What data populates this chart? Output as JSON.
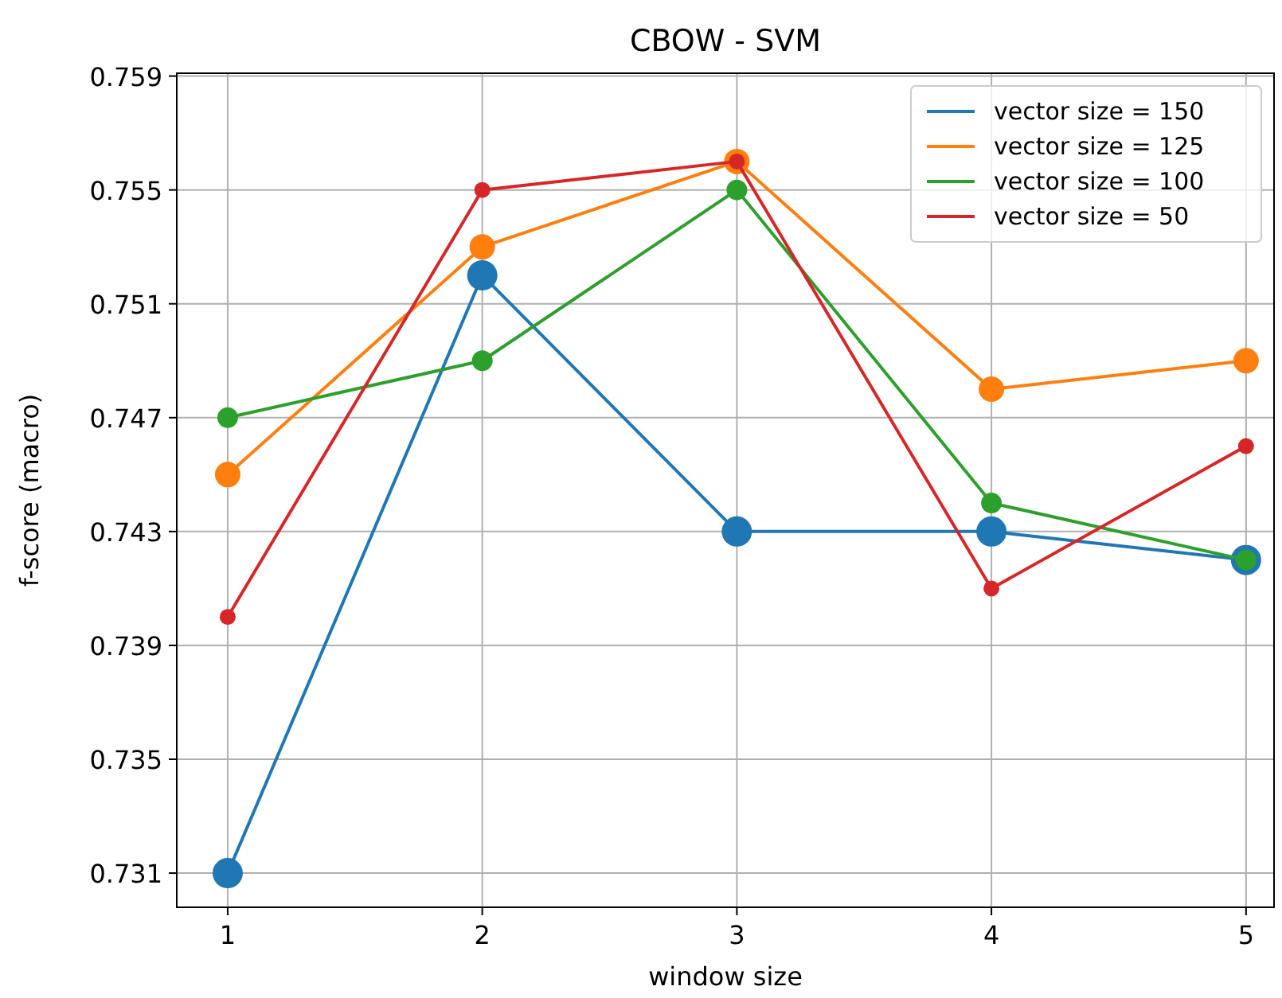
{
  "chart_data": {
    "type": "line",
    "title": "CBOW - SVM",
    "xlabel": "window size",
    "ylabel": "f-score (macro)",
    "x": [
      1,
      2,
      3,
      4,
      5
    ],
    "series": [
      {
        "name": "vector size = 150",
        "color": "#1f77b4",
        "values": [
          0.731,
          0.752,
          0.743,
          0.743,
          0.742
        ]
      },
      {
        "name": "vector size = 125",
        "color": "#ff7f0e",
        "values": [
          0.745,
          0.753,
          0.756,
          0.748,
          0.749
        ]
      },
      {
        "name": "vector size = 100",
        "color": "#2ca02c",
        "values": [
          0.747,
          0.749,
          0.755,
          0.744,
          0.742
        ]
      },
      {
        "name": "vector size = 50",
        "color": "#d62728",
        "values": [
          0.74,
          0.755,
          0.756,
          0.741,
          0.746
        ]
      }
    ],
    "xlim": [
      0.8,
      5.11
    ],
    "xticks": [
      1,
      2,
      3,
      4,
      5
    ],
    "ylim": [
      0.7298,
      0.7591
    ],
    "yticks": [
      {
        "value": 0.731,
        "label": "0.731"
      },
      {
        "value": 0.735,
        "label": "0.735"
      },
      {
        "value": 0.739,
        "label": "0.739"
      },
      {
        "value": 0.743,
        "label": "0.743"
      },
      {
        "value": 0.747,
        "label": "0.747"
      },
      {
        "value": 0.751,
        "label": "0.751"
      },
      {
        "value": 0.755,
        "label": "0.755"
      },
      {
        "value": 0.759,
        "label": "0.759"
      }
    ],
    "grid": true,
    "legend": "top right",
    "marker": "circle",
    "line_style": "solid"
  }
}
